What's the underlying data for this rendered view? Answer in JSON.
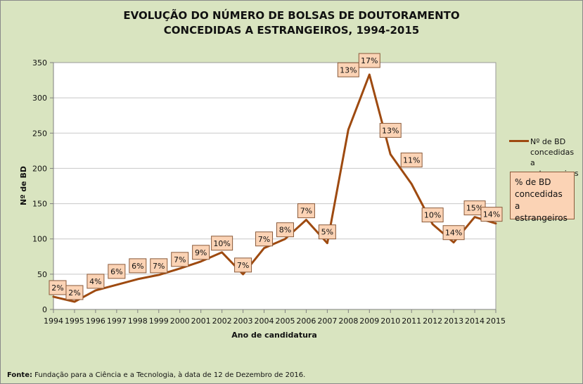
{
  "chart_data": {
    "type": "line",
    "title_lines": [
      "EVOLUÇÃO DO NÚMERO DE BOLSAS DE DOUTORAMENTO",
      "CONCEDIDAS A ESTRANGEIROS, 1994-2015"
    ],
    "xlabel": "Ano de candidatura",
    "ylabel": "Nº de BD",
    "ylim": [
      0,
      350
    ],
    "yticks": [
      0,
      50,
      100,
      150,
      200,
      250,
      300,
      350
    ],
    "categories": [
      "1994",
      "1995",
      "1996",
      "1997",
      "1998",
      "1999",
      "2000",
      "2001",
      "2002",
      "2003",
      "2004",
      "2005",
      "2006",
      "2007",
      "2008",
      "2009",
      "2010",
      "2011",
      "2012",
      "2013",
      "2014",
      "2015"
    ],
    "series": [
      {
        "name": "Nº de BD concedidas a estrangeiros",
        "color": "#9e4a10",
        "values": [
          18,
          11,
          27,
          35,
          43,
          49,
          58,
          68,
          81,
          50,
          87,
          100,
          127,
          94,
          255,
          333,
          220,
          178,
          121,
          95,
          131,
          122
        ]
      }
    ],
    "data_labels": [
      "2%",
      "2%",
      "4%",
      "6%",
      "6%",
      "7%",
      "7%",
      "9%",
      "10%",
      "7%",
      "7%",
      "8%",
      "7%",
      "5%",
      "13%",
      "17%",
      "13%",
      "11%",
      "10%",
      "14%",
      "15%",
      "14%"
    ],
    "grid": true,
    "legend": {
      "position": "right",
      "series_label": "Nº de BD concedidas a estrangeiros",
      "label_lines": [
        "Nº de BD",
        "concedidas a",
        "estrangeiros"
      ]
    },
    "percent_note_lines": [
      "% de BD",
      "concedidas a",
      "estrangeiros"
    ]
  },
  "source": {
    "label": "Fonte:",
    "text": "Fundação para a Ciência e a Tecnologia, à data de 12 de Dezembro de 2016."
  },
  "colors": {
    "background": "#d9e4c0",
    "plot_area": "#ffffff",
    "line": "#9e4a10",
    "label_fill": "#fbd3b5"
  }
}
